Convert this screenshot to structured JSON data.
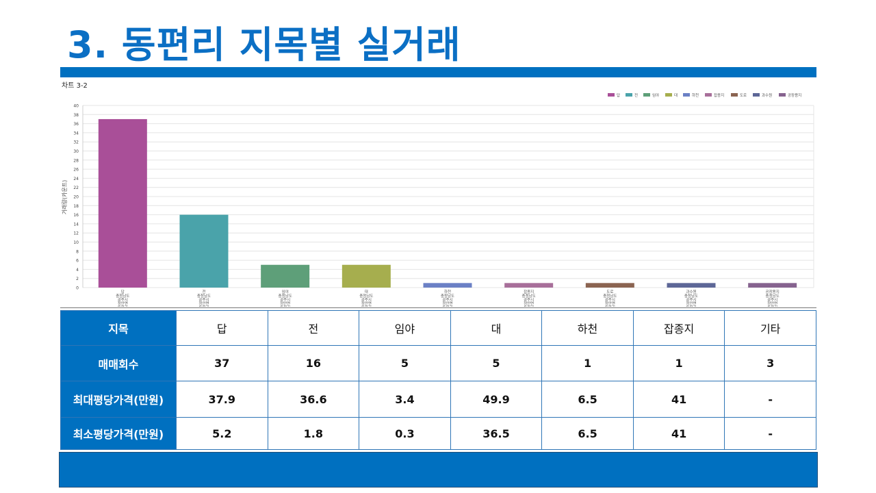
{
  "title": "3. 동편리 지목별 실거래",
  "chart_label": "차트 3-2",
  "chart_data": {
    "type": "bar",
    "categories": [
      "답",
      "전",
      "임야",
      "대",
      "하천",
      "잡종지",
      "도로",
      "과수원",
      "공장용지"
    ],
    "tick_sublines": [
      "충청남도",
      "공주시",
      "정안면",
      "동편리"
    ],
    "values": [
      37,
      16,
      5,
      5,
      1,
      1,
      1,
      1,
      1
    ],
    "colors": [
      "#a94f98",
      "#4aa3aa",
      "#5e9f79",
      "#a6ae4e",
      "#6b80c5",
      "#a86f9a",
      "#8b6451",
      "#5d6797",
      "#86638f"
    ],
    "legend": [
      "답",
      "전",
      "임야",
      "대",
      "하천",
      "잡종지",
      "도로",
      "과수원",
      "공장용지"
    ],
    "legend_position": "top-right",
    "ylabel": "거래량(카운트)",
    "ylim": [
      0,
      40
    ],
    "yticks": [
      0,
      2,
      4,
      6,
      8,
      10,
      12,
      14,
      16,
      18,
      20,
      22,
      24,
      26,
      28,
      30,
      32,
      34,
      36,
      38,
      40
    ],
    "grid": true
  },
  "table": {
    "columns": [
      "지목",
      "답",
      "전",
      "임야",
      "대",
      "하천",
      "잡종지",
      "기타"
    ],
    "rows": [
      {
        "label": "매매회수",
        "values": [
          "37",
          "16",
          "5",
          "5",
          "1",
          "1",
          "3"
        ]
      },
      {
        "label": "최대평당가격(만원)",
        "values": [
          "37.9",
          "36.6",
          "3.4",
          "49.9",
          "6.5",
          "41",
          "-"
        ]
      },
      {
        "label": "최소평당가격(만원)",
        "values": [
          "5.2",
          "1.8",
          "0.3",
          "36.5",
          "6.5",
          "41",
          "-"
        ]
      }
    ]
  }
}
